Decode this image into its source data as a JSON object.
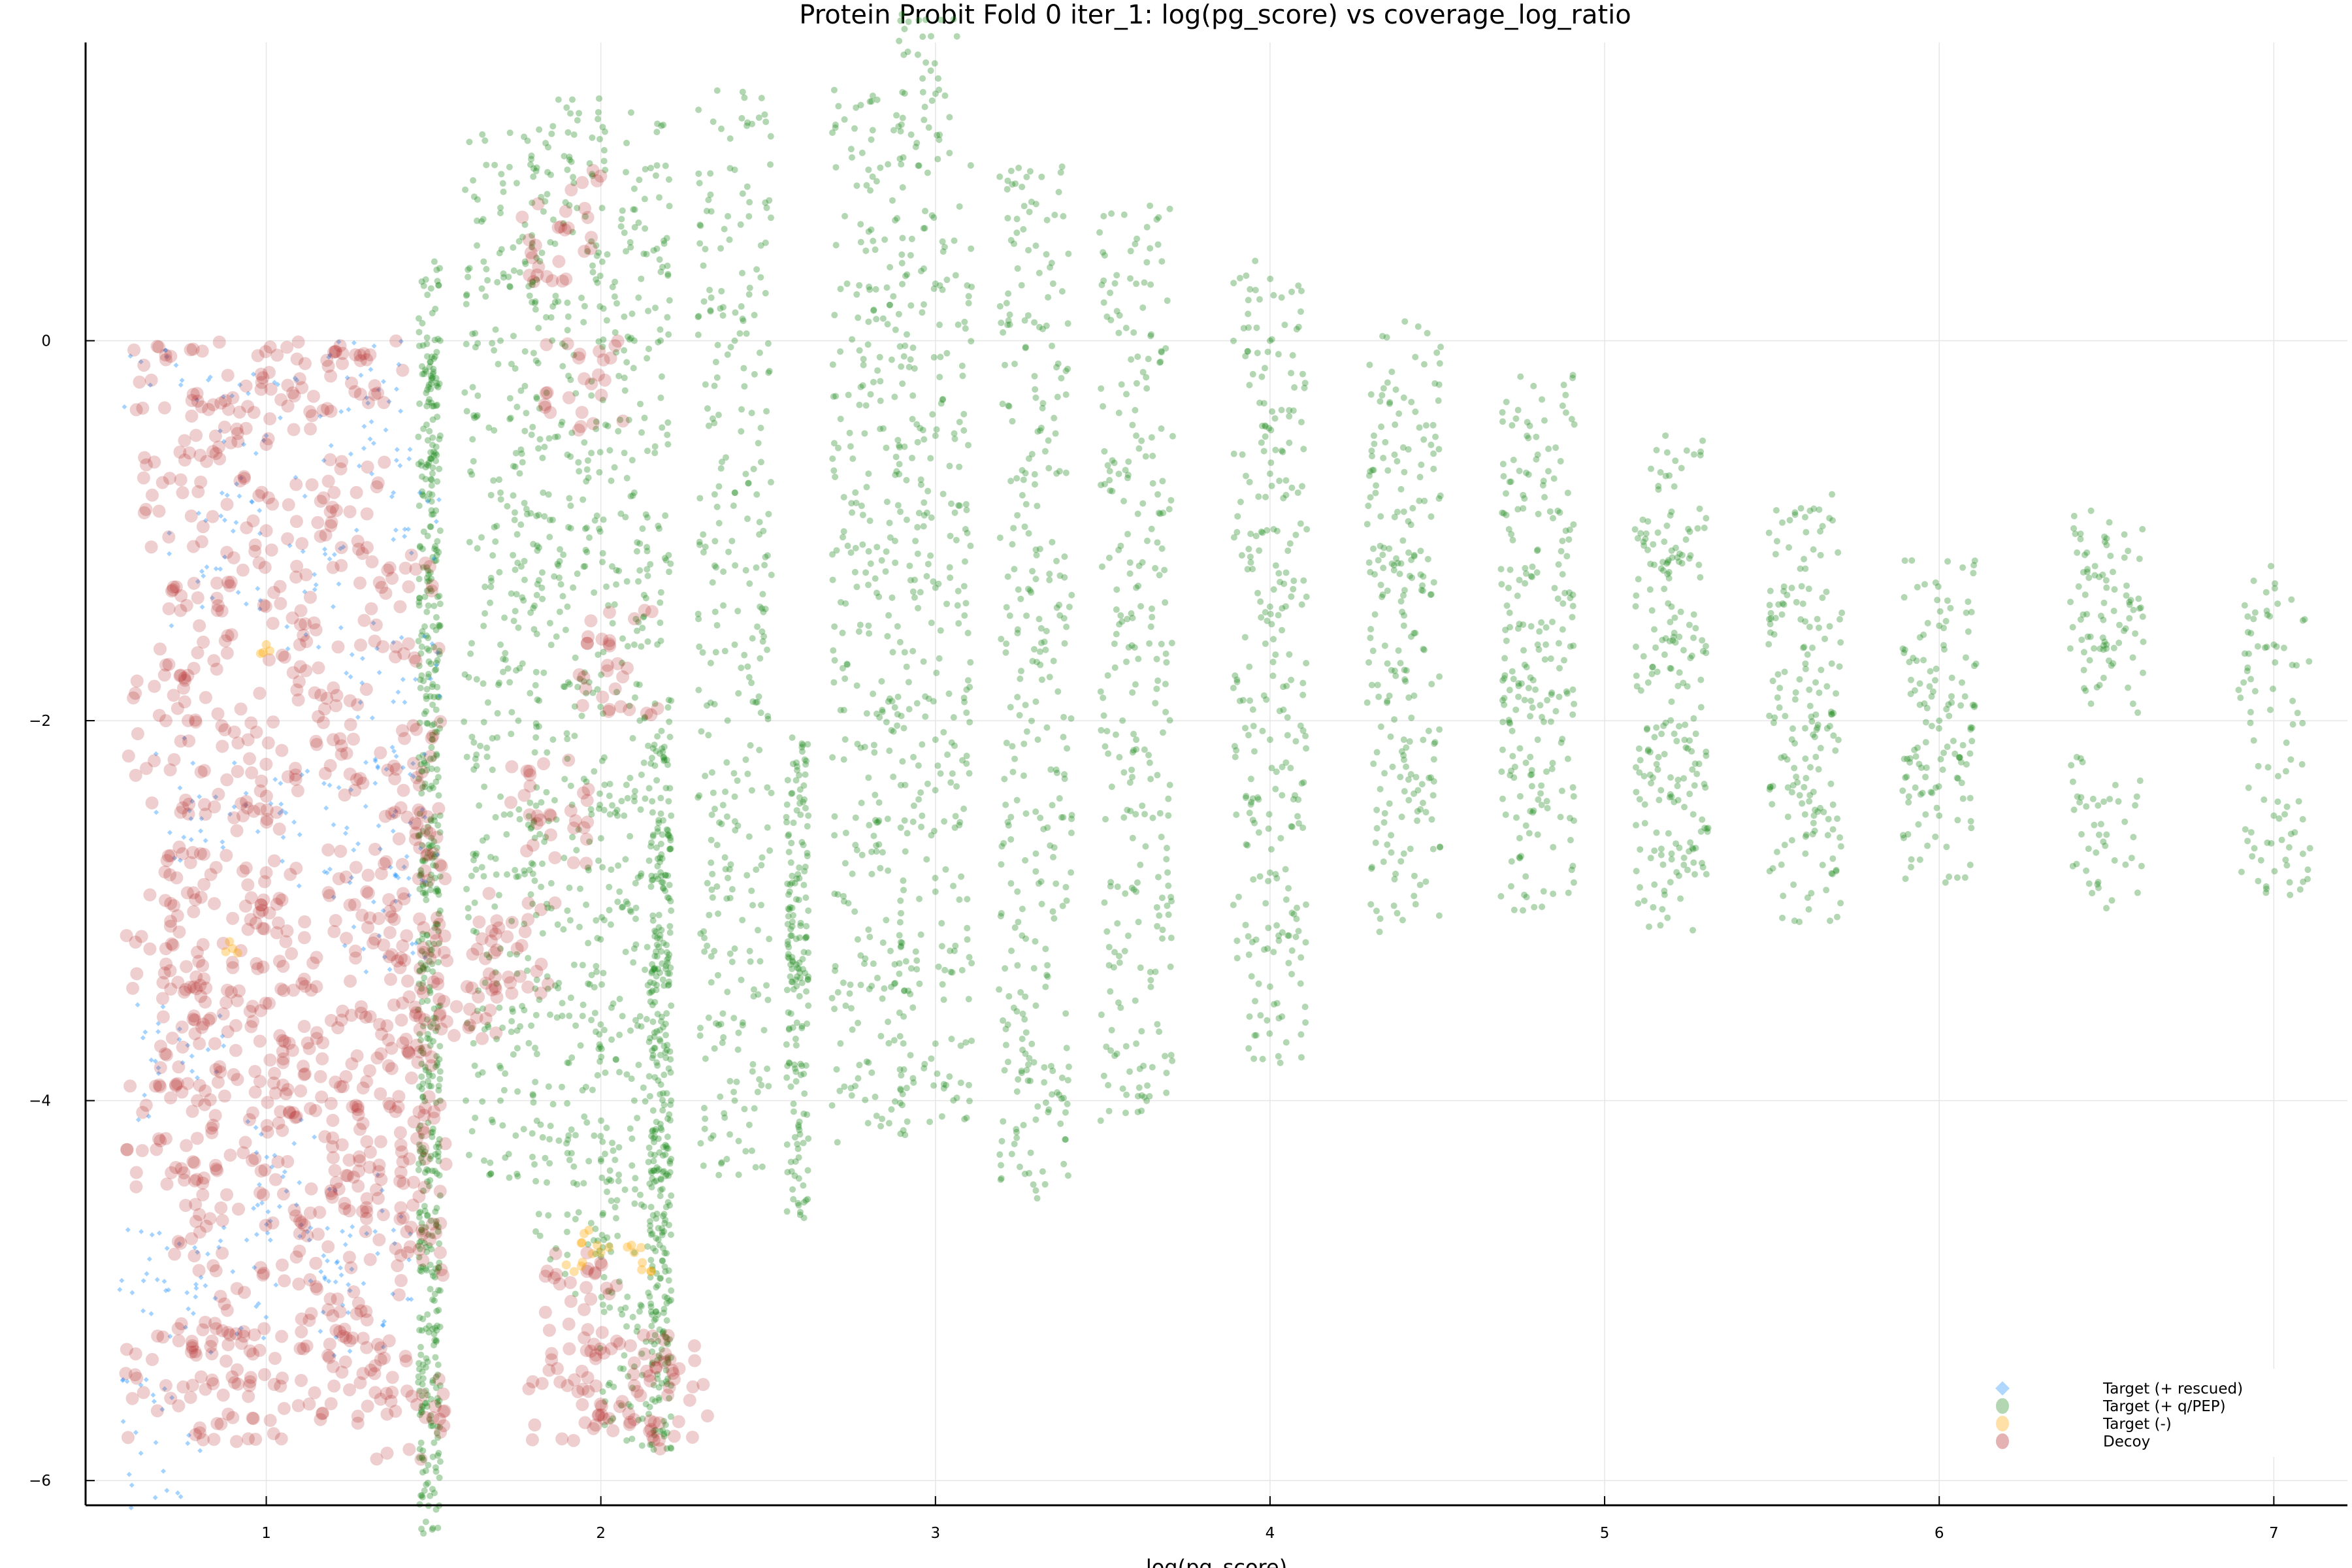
{
  "chart_data": {
    "type": "scatter",
    "title": "Protein Probit Fold 0 iter_1: log(pg_score) vs coverage_log_ratio",
    "xlabel": "log(pg_score)",
    "ylabel": "",
    "xlim": [
      0.46,
      7.22
    ],
    "ylim": [
      -6.13,
      1.57
    ],
    "xticks": [
      1,
      2,
      3,
      4,
      5,
      6,
      7
    ],
    "yticks": [
      0,
      -2,
      -4,
      -6
    ],
    "xtick_labels": [
      "1",
      "2",
      "3",
      "4",
      "5",
      "6",
      "7"
    ],
    "ytick_labels": [
      "0",
      "−2",
      "−4",
      "−6"
    ],
    "grid": true,
    "legend_position": "bottom-right",
    "series": [
      {
        "name": "Target (+ q/PEP)",
        "color": "#228B22",
        "marker": "circle",
        "points": [
          [
            1.52,
            0
          ],
          [
            1.52,
            -0.5
          ],
          [
            1.52,
            -1
          ],
          [
            1.52,
            -1.5
          ],
          [
            1.52,
            -2
          ],
          [
            1.52,
            -2.5
          ],
          [
            1.52,
            -3
          ],
          [
            1.52,
            -3.5
          ],
          [
            1.52,
            -4
          ],
          [
            1.52,
            -4.5
          ],
          [
            1.52,
            -5
          ],
          [
            1.52,
            -5.5
          ],
          [
            1.52,
            -5.9
          ],
          [
            1.7,
            0.7
          ],
          [
            1.7,
            0
          ],
          [
            1.7,
            -0.8
          ],
          [
            1.7,
            -1.6
          ],
          [
            1.7,
            -2.4
          ],
          [
            1.7,
            -3.2
          ],
          [
            1.7,
            -4.0
          ],
          [
            1.9,
            0.9
          ],
          [
            1.9,
            0.2
          ],
          [
            1.9,
            -0.6
          ],
          [
            1.9,
            -1.4
          ],
          [
            1.9,
            -2.2
          ],
          [
            1.9,
            -3.0
          ],
          [
            1.9,
            -3.8
          ],
          [
            1.9,
            -4.6
          ],
          [
            2.1,
            0.8
          ],
          [
            2.1,
            0
          ],
          [
            2.1,
            -0.8
          ],
          [
            2.1,
            -1.6
          ],
          [
            2.1,
            -2.4
          ],
          [
            2.1,
            -3.2
          ],
          [
            2.1,
            -4.0
          ],
          [
            2.1,
            -4.8
          ],
          [
            2.1,
            -5.4
          ],
          [
            2.21,
            -2.5
          ],
          [
            2.21,
            -3
          ],
          [
            2.21,
            -3.5
          ],
          [
            2.21,
            -4
          ],
          [
            2.21,
            -4.5
          ],
          [
            2.21,
            -5
          ],
          [
            2.21,
            -5.5
          ],
          [
            2.4,
            0.9
          ],
          [
            2.4,
            0
          ],
          [
            2.4,
            -0.8
          ],
          [
            2.4,
            -1.6
          ],
          [
            2.4,
            -2.4
          ],
          [
            2.4,
            -3.2
          ],
          [
            2.4,
            -4.0
          ],
          [
            2.62,
            -2.5
          ],
          [
            2.62,
            -3
          ],
          [
            2.62,
            -3.5
          ],
          [
            2.62,
            -4.2
          ],
          [
            2.8,
            0.9
          ],
          [
            2.8,
            0.1
          ],
          [
            2.8,
            -0.7
          ],
          [
            2.8,
            -1.5
          ],
          [
            2.8,
            -2.3
          ],
          [
            2.8,
            -3.1
          ],
          [
            2.8,
            -3.8
          ],
          [
            3.0,
            1.3
          ],
          [
            3.0,
            0.3
          ],
          [
            3.0,
            -0.5
          ],
          [
            3.0,
            -1.3
          ],
          [
            3.0,
            -2.1
          ],
          [
            3.0,
            -2.9
          ],
          [
            3.0,
            -3.7
          ],
          [
            3.3,
            0.5
          ],
          [
            3.3,
            -0.3
          ],
          [
            3.3,
            -1.1
          ],
          [
            3.3,
            -1.9
          ],
          [
            3.3,
            -2.7
          ],
          [
            3.3,
            -3.5
          ],
          [
            3.3,
            -4.1
          ],
          [
            3.6,
            0.3
          ],
          [
            3.6,
            -0.5
          ],
          [
            3.6,
            -1.3
          ],
          [
            3.6,
            -2.1
          ],
          [
            3.6,
            -2.9
          ],
          [
            3.6,
            -3.7
          ],
          [
            4.0,
            0.0
          ],
          [
            4.0,
            -0.7
          ],
          [
            4.0,
            -1.4
          ],
          [
            4.0,
            -2.1
          ],
          [
            4.0,
            -2.8
          ],
          [
            4.0,
            -3.4
          ],
          [
            4.4,
            -0.3
          ],
          [
            4.4,
            -0.9
          ],
          [
            4.4,
            -1.5
          ],
          [
            4.4,
            -2.1
          ],
          [
            4.4,
            -2.7
          ],
          [
            4.8,
            -0.6
          ],
          [
            4.8,
            -1.1
          ],
          [
            4.8,
            -1.6
          ],
          [
            4.8,
            -2.1
          ],
          [
            4.8,
            -2.6
          ],
          [
            5.2,
            -0.9
          ],
          [
            5.2,
            -1.4
          ],
          [
            5.2,
            -1.9
          ],
          [
            5.2,
            -2.4
          ],
          [
            5.2,
            -2.7
          ],
          [
            5.6,
            -1.2
          ],
          [
            5.6,
            -1.7
          ],
          [
            5.6,
            -2.2
          ],
          [
            5.6,
            -2.7
          ],
          [
            6.0,
            -1.5
          ],
          [
            6.0,
            -2.0
          ],
          [
            6.0,
            -2.5
          ],
          [
            6.5,
            -1.3
          ],
          [
            6.5,
            -1.6
          ],
          [
            6.5,
            -2.6
          ],
          [
            7.0,
            -1.6
          ],
          [
            7.0,
            -2.5
          ]
        ]
      },
      {
        "name": "Decoy",
        "color": "#B22222",
        "marker": "circle",
        "points": [
          [
            0.7,
            -0.1
          ],
          [
            0.9,
            -0.3
          ],
          [
            1.1,
            -0.2
          ],
          [
            1.3,
            -0.1
          ],
          [
            0.75,
            -0.8
          ],
          [
            1.0,
            -1.0
          ],
          [
            1.25,
            -0.9
          ],
          [
            0.8,
            -1.5
          ],
          [
            1.1,
            -1.6
          ],
          [
            1.4,
            -1.4
          ],
          [
            0.7,
            -2.0
          ],
          [
            0.95,
            -2.2
          ],
          [
            1.2,
            -2.1
          ],
          [
            1.45,
            -2.3
          ],
          [
            0.75,
            -2.7
          ],
          [
            1.0,
            -2.8
          ],
          [
            1.3,
            -2.9
          ],
          [
            1.5,
            -2.7
          ],
          [
            0.7,
            -3.2
          ],
          [
            0.9,
            -3.3
          ],
          [
            1.15,
            -3.4
          ],
          [
            1.4,
            -3.3
          ],
          [
            0.8,
            -3.7
          ],
          [
            1.05,
            -3.8
          ],
          [
            1.3,
            -3.9
          ],
          [
            1.5,
            -3.6
          ],
          [
            0.7,
            -4.2
          ],
          [
            0.95,
            -4.1
          ],
          [
            1.2,
            -4.3
          ],
          [
            1.45,
            -4.2
          ],
          [
            0.8,
            -4.6
          ],
          [
            1.1,
            -4.7
          ],
          [
            1.35,
            -4.6
          ],
          [
            1.52,
            -4.8
          ],
          [
            0.7,
            -5.5
          ],
          [
            0.95,
            -5.5
          ],
          [
            1.2,
            -5.4
          ],
          [
            1.45,
            -5.6
          ],
          [
            0.85,
            -5.2
          ],
          [
            1.3,
            -5.3
          ],
          [
            1.9,
            -5.5
          ],
          [
            2.1,
            -5.5
          ],
          [
            2.2,
            -5.55
          ],
          [
            1.95,
            -5.1
          ],
          [
            1.85,
            -2.5
          ],
          [
            1.75,
            -3.2
          ],
          [
            1.95,
            -0.2
          ],
          [
            1.88,
            0.6
          ],
          [
            2.05,
            -1.7
          ],
          [
            1.6,
            -3.4
          ]
        ]
      },
      {
        "name": "Target (+ rescued)",
        "color": "#1E90FF",
        "marker": "diamond",
        "points": [
          [
            0.7,
            -0.05
          ],
          [
            1.0,
            -0.5
          ],
          [
            1.3,
            -0.3
          ],
          [
            0.85,
            -1.2
          ],
          [
            1.2,
            -1.4
          ],
          [
            1.38,
            -1.9
          ],
          [
            0.8,
            -2.4
          ],
          [
            1.1,
            -2.6
          ],
          [
            1.35,
            -3.0
          ],
          [
            0.75,
            -3.8
          ],
          [
            1.05,
            -4.4
          ],
          [
            1.3,
            -4.7
          ],
          [
            0.7,
            -5.0
          ],
          [
            0.9,
            -4.9
          ],
          [
            0.67,
            -5.8
          ],
          [
            1.25,
            -5.0
          ],
          [
            1.38,
            -0.8
          ],
          [
            1.38,
            -2.5
          ]
        ]
      },
      {
        "name": "Target (-)",
        "color": "#FFA500",
        "marker": "circle",
        "points": [
          [
            2.0,
            -4.8
          ],
          [
            1.95,
            -4.7
          ],
          [
            2.1,
            -4.8
          ],
          [
            2.15,
            -4.9
          ],
          [
            1.92,
            -4.9
          ],
          [
            1.0,
            -1.6
          ],
          [
            0.9,
            -3.2
          ]
        ]
      }
    ],
    "legend": [
      {
        "label": "Target (+ rescued)",
        "color": "#1E90FF",
        "marker": "diamond"
      },
      {
        "label": "Target (+ q/PEP)",
        "color": "#228B22",
        "marker": "circle"
      },
      {
        "label": "Target (-)",
        "color": "#FFA500",
        "marker": "circle"
      },
      {
        "label": "Decoy",
        "color": "#B22222",
        "marker": "circle"
      }
    ]
  }
}
